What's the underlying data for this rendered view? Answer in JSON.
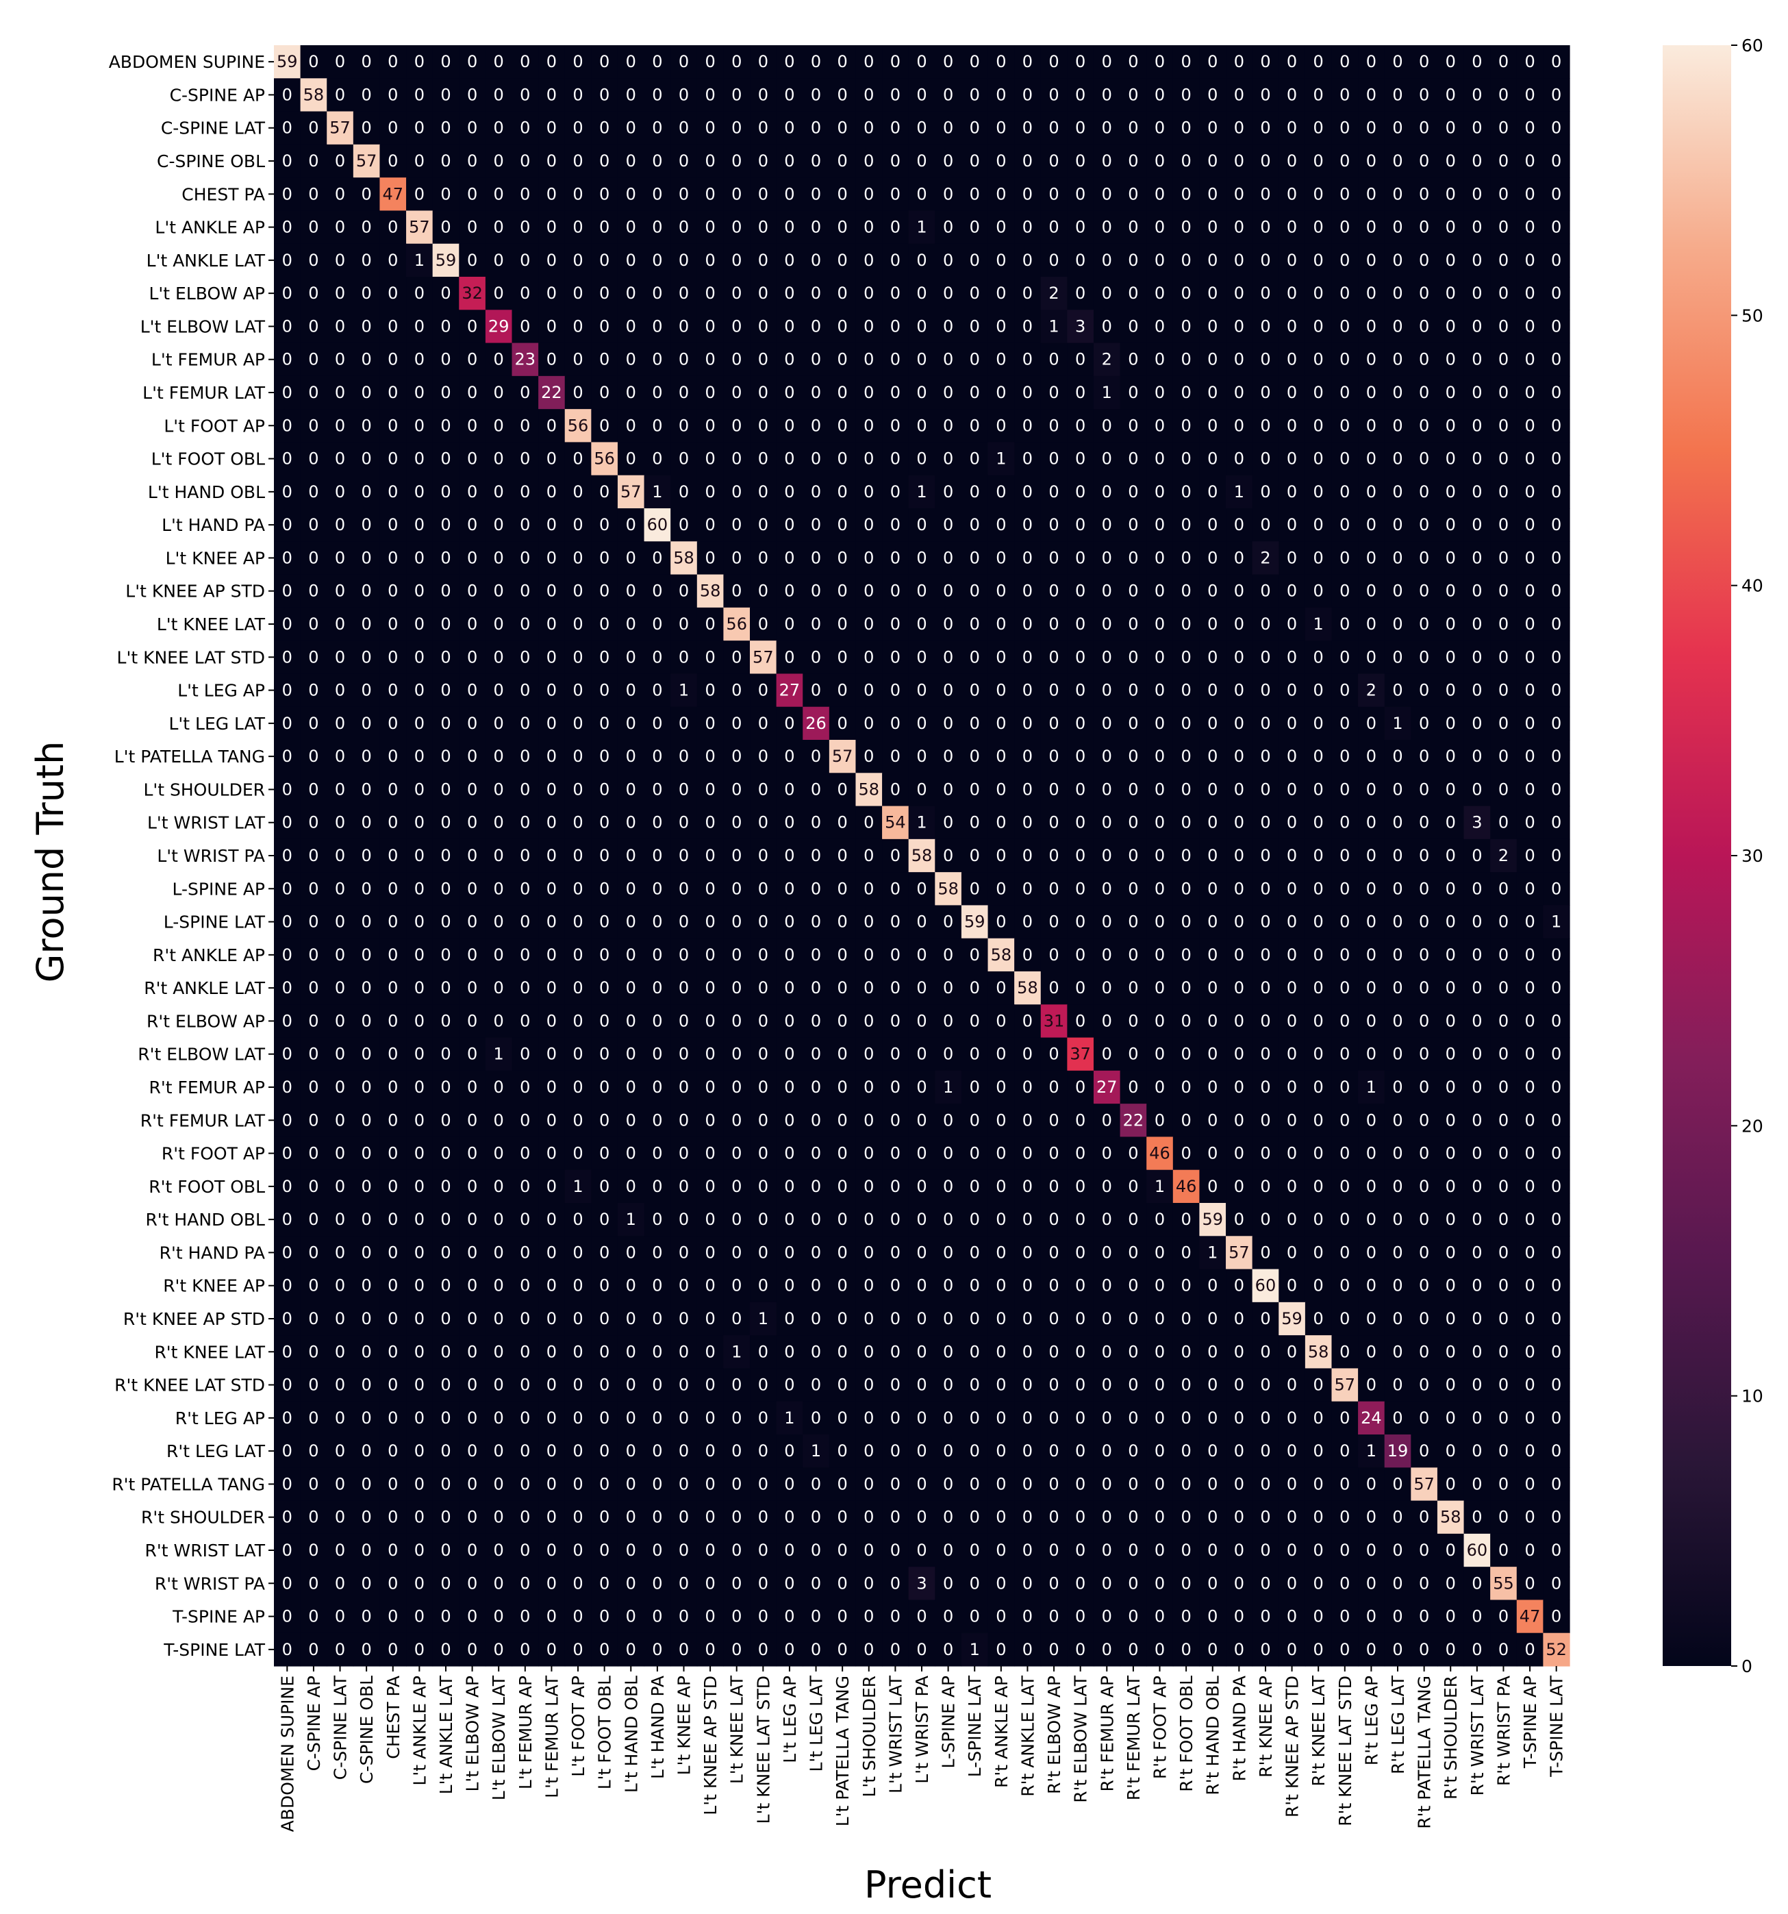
{
  "chart_data": {
    "type": "heatmap",
    "title": "",
    "xlabel": "Predict",
    "ylabel": "Ground Truth",
    "colorbar": {
      "min": 0,
      "max": 60,
      "ticks": [
        "0",
        "10",
        "20",
        "30",
        "40",
        "50",
        "60"
      ],
      "colormap": "rocket"
    },
    "labels": [
      "ABDOMEN SUPINE",
      "C-SPINE AP",
      "C-SPINE LAT",
      "C-SPINE OBL",
      "CHEST PA",
      "L't ANKLE AP",
      "L't ANKLE LAT",
      "L't ELBOW AP",
      "L't ELBOW LAT",
      "L't FEMUR AP",
      "L't FEMUR LAT",
      "L't FOOT AP",
      "L't FOOT OBL",
      "L't HAND OBL",
      "L't HAND PA",
      "L't KNEE AP",
      "L't KNEE AP STD",
      "L't KNEE LAT",
      "L't KNEE LAT STD",
      "L't LEG AP",
      "L't LEG LAT",
      "L't PATELLA TANG",
      "L't SHOULDER",
      "L't WRIST LAT",
      "L't WRIST PA",
      "L-SPINE AP",
      "L-SPINE LAT",
      "R't ANKLE AP",
      "R't ANKLE LAT",
      "R't ELBOW AP",
      "R't ELBOW LAT",
      "R't FEMUR AP",
      "R't FEMUR LAT",
      "R't FOOT AP",
      "R't FOOT OBL",
      "R't HAND OBL",
      "R't HAND PA",
      "R't KNEE AP",
      "R't KNEE AP STD",
      "R't KNEE LAT",
      "R't KNEE LAT STD",
      "R't LEG AP",
      "R't LEG LAT",
      "R't PATELLA TANG",
      "R't SHOULDER",
      "R't WRIST LAT",
      "R't WRIST PA",
      "T-SPINE AP",
      "T-SPINE LAT"
    ],
    "diagonal": [
      59,
      58,
      57,
      57,
      47,
      57,
      59,
      32,
      29,
      23,
      22,
      56,
      56,
      57,
      60,
      58,
      58,
      56,
      57,
      27,
      26,
      57,
      58,
      54,
      58,
      58,
      59,
      58,
      58,
      31,
      37,
      27,
      22,
      46,
      46,
      59,
      57,
      60,
      59,
      58,
      57,
      24,
      19,
      57,
      58,
      60,
      55,
      47,
      52
    ],
    "off_diagonal": [
      [
        5,
        24,
        1
      ],
      [
        6,
        5,
        1
      ],
      [
        7,
        29,
        2
      ],
      [
        8,
        29,
        1
      ],
      [
        8,
        30,
        3
      ],
      [
        9,
        31,
        2
      ],
      [
        10,
        31,
        1
      ],
      [
        12,
        27,
        1
      ],
      [
        13,
        14,
        1
      ],
      [
        13,
        24,
        1
      ],
      [
        13,
        36,
        1
      ],
      [
        15,
        37,
        2
      ],
      [
        17,
        39,
        1
      ],
      [
        19,
        15,
        1
      ],
      [
        19,
        41,
        2
      ],
      [
        20,
        42,
        1
      ],
      [
        23,
        24,
        1
      ],
      [
        23,
        45,
        3
      ],
      [
        24,
        46,
        2
      ],
      [
        26,
        48,
        1
      ],
      [
        30,
        8,
        1
      ],
      [
        31,
        25,
        1
      ],
      [
        31,
        41,
        1
      ],
      [
        34,
        11,
        1
      ],
      [
        34,
        33,
        1
      ],
      [
        35,
        13,
        1
      ],
      [
        36,
        35,
        1
      ],
      [
        38,
        18,
        1
      ],
      [
        39,
        17,
        1
      ],
      [
        41,
        19,
        1
      ],
      [
        42,
        20,
        1
      ],
      [
        42,
        41,
        1
      ],
      [
        46,
        24,
        3
      ],
      [
        48,
        26,
        1
      ]
    ]
  }
}
